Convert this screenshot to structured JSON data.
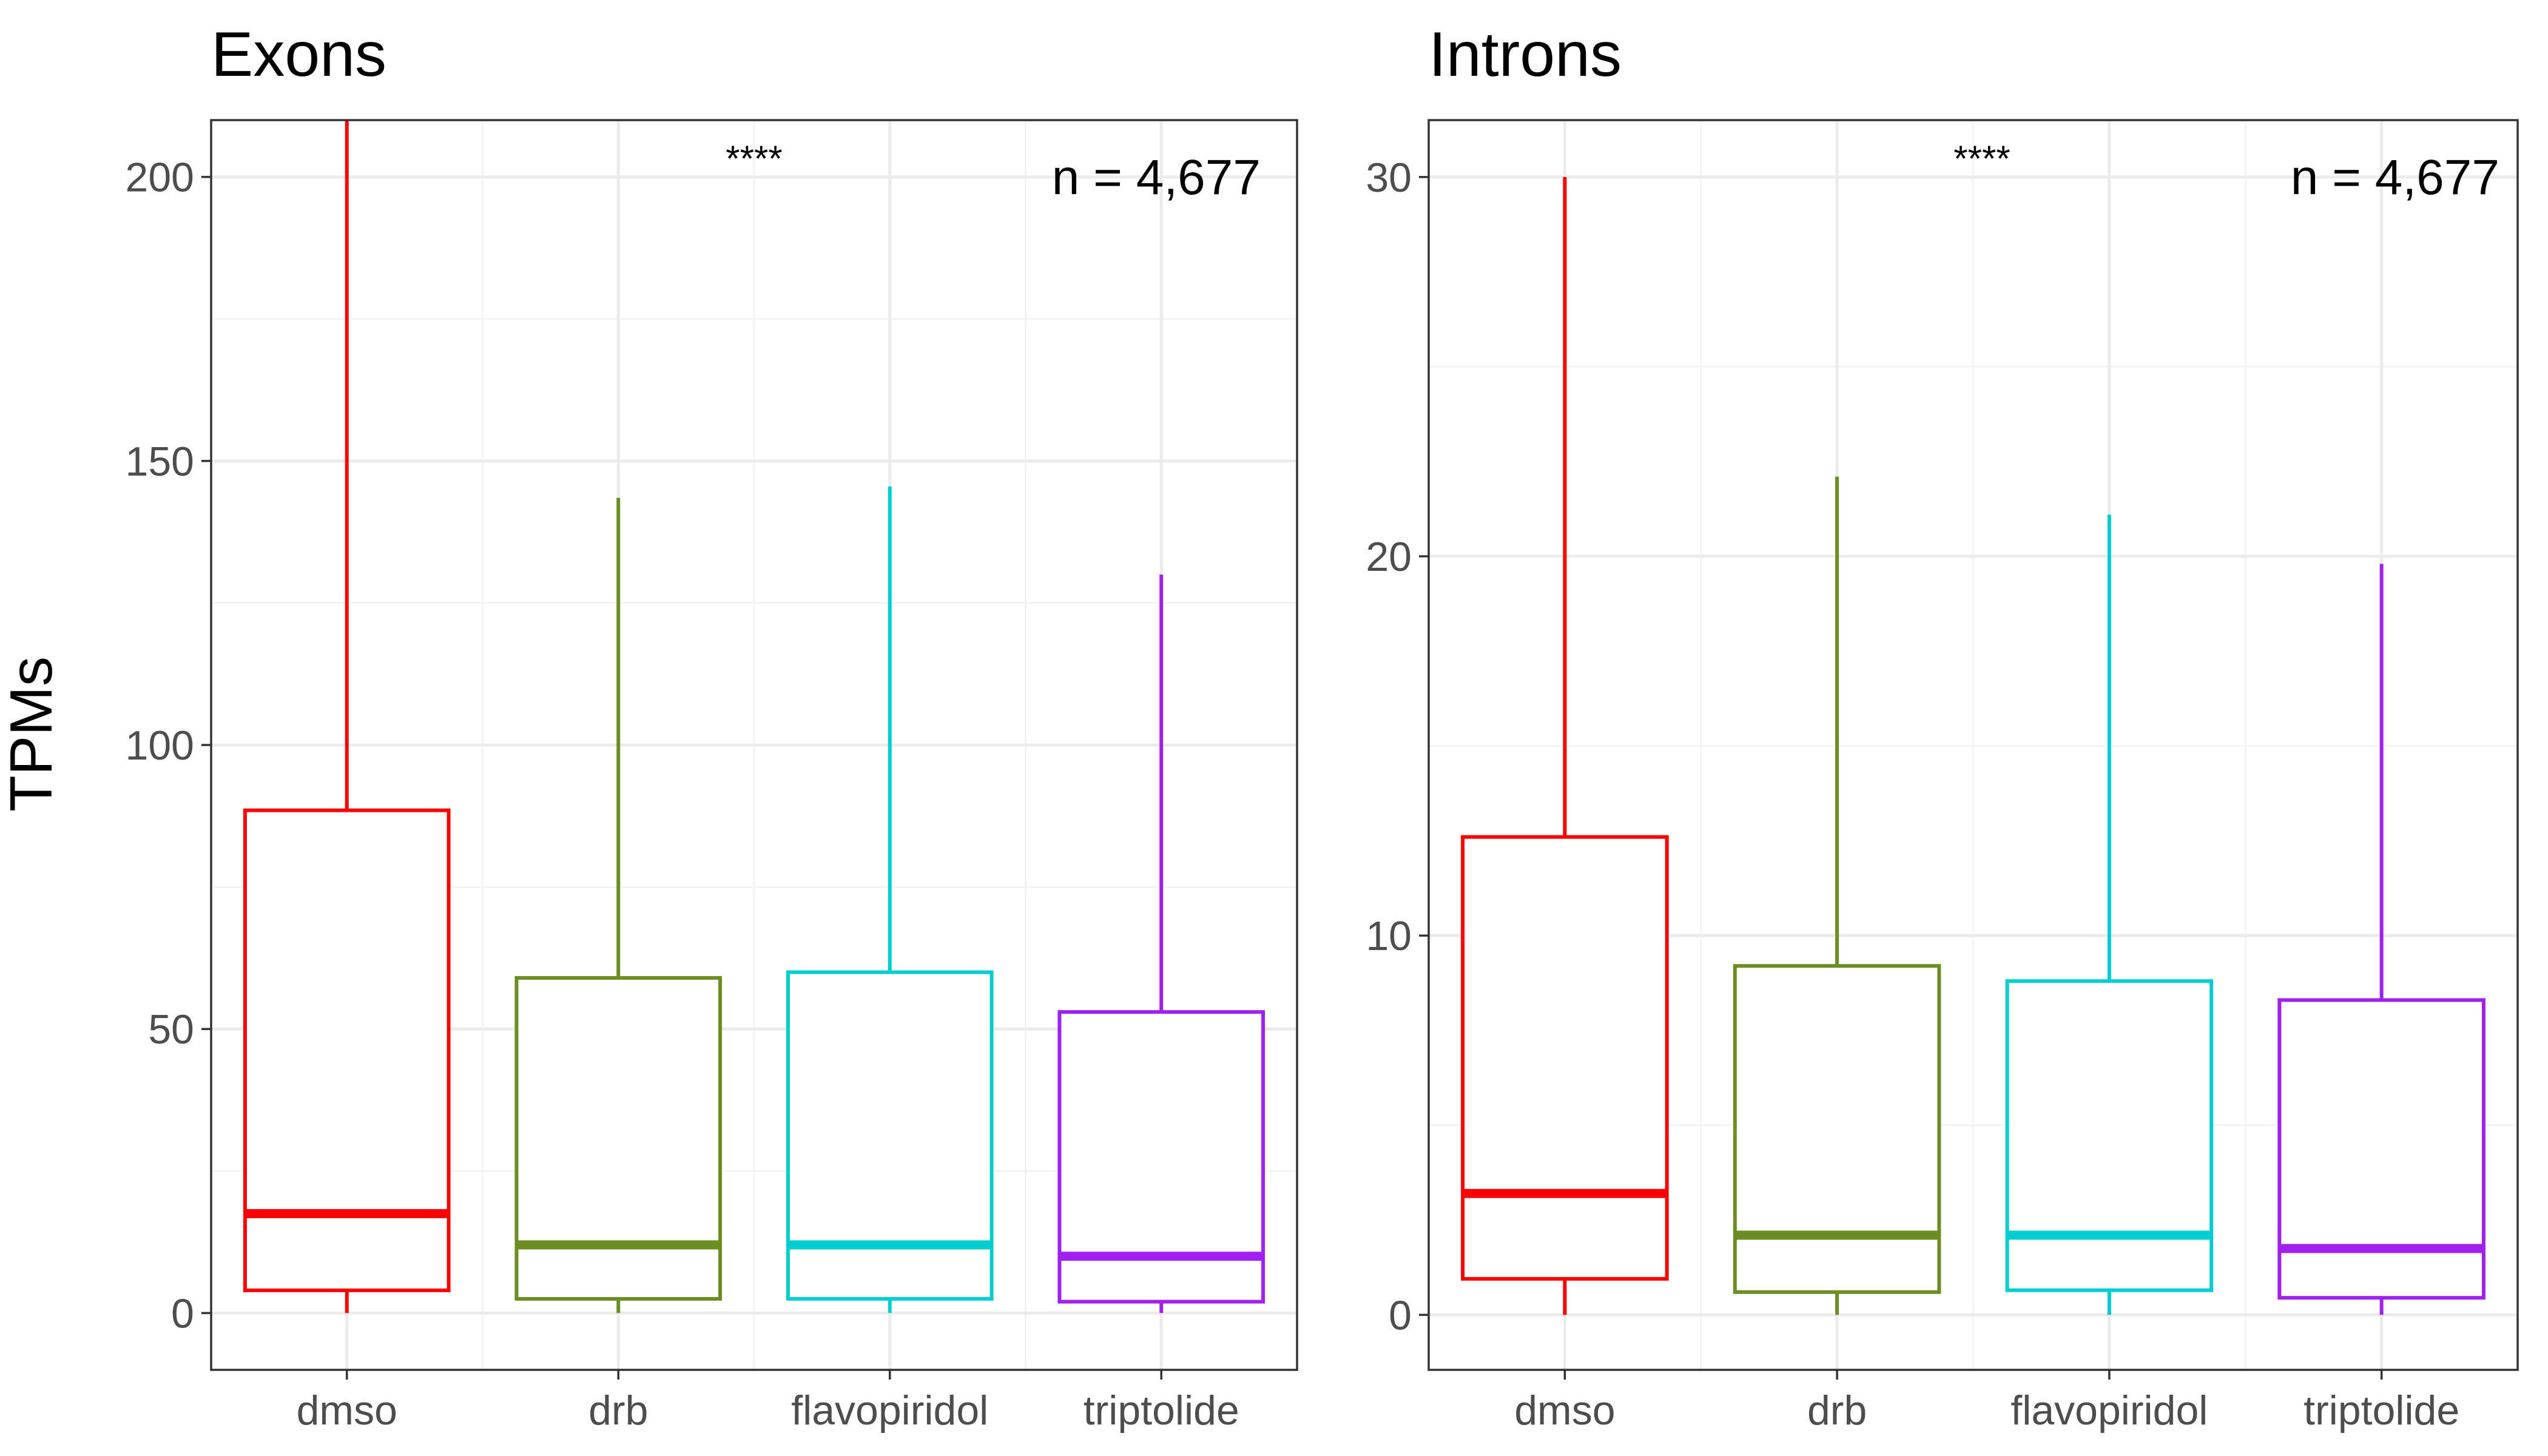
{
  "chart_data": [
    {
      "type": "box",
      "title": "Exons",
      "ylabel": "TPMs",
      "xlabel": "",
      "ylim": [
        -10,
        210
      ],
      "yticks": [
        0,
        50,
        100,
        150,
        200
      ],
      "categories": [
        "dmso",
        "drb",
        "flavopiridol",
        "triptolide"
      ],
      "colors": [
        "#ff0000",
        "#6b8e23",
        "#00ced1",
        "#a020f0"
      ],
      "boxes": [
        {
          "category": "dmso",
          "whisker_low": 0,
          "q1": 4,
          "median": 17.5,
          "q3": 88.5,
          "whisker_high": 210
        },
        {
          "category": "drb",
          "whisker_low": 0,
          "q1": 2.5,
          "median": 12,
          "q3": 59,
          "whisker_high": 143.5
        },
        {
          "category": "flavopiridol",
          "whisker_low": 0,
          "q1": 2.5,
          "median": 12,
          "q3": 60,
          "whisker_high": 145.5
        },
        {
          "category": "triptolide",
          "whisker_low": 0,
          "q1": 2,
          "median": 10,
          "q3": 53,
          "whisker_high": 130
        }
      ],
      "significance": "****",
      "n_label": "n = 4,677"
    },
    {
      "type": "box",
      "title": "Introns",
      "ylabel": "",
      "xlabel": "",
      "ylim": [
        -1.45,
        31.5
      ],
      "yticks": [
        0,
        10,
        20,
        30
      ],
      "categories": [
        "dmso",
        "drb",
        "flavopiridol",
        "triptolide"
      ],
      "colors": [
        "#ff0000",
        "#6b8e23",
        "#00ced1",
        "#a020f0"
      ],
      "boxes": [
        {
          "category": "dmso",
          "whisker_low": 0,
          "q1": 0.95,
          "median": 3.2,
          "q3": 12.6,
          "whisker_high": 30
        },
        {
          "category": "drb",
          "whisker_low": 0,
          "q1": 0.6,
          "median": 2.1,
          "q3": 9.2,
          "whisker_high": 22.1
        },
        {
          "category": "flavopiridol",
          "whisker_low": 0,
          "q1": 0.65,
          "median": 2.1,
          "q3": 8.8,
          "whisker_high": 21.1
        },
        {
          "category": "triptolide",
          "whisker_low": 0,
          "q1": 0.45,
          "median": 1.75,
          "q3": 8.3,
          "whisker_high": 19.8
        }
      ],
      "significance": "****",
      "n_label": "n = 4,677"
    }
  ]
}
